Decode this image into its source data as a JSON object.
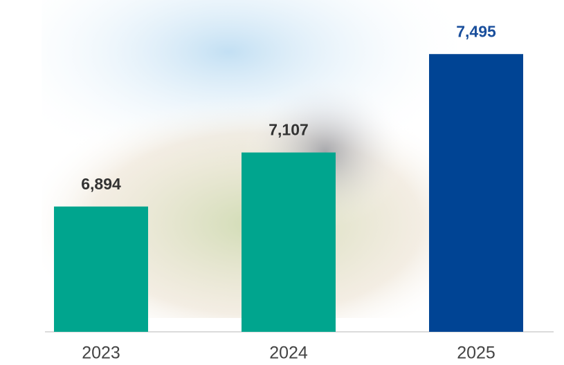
{
  "chart_data": {
    "type": "bar",
    "categories": [
      "2023",
      "2024",
      "2025"
    ],
    "values": [
      6894,
      7107,
      7495
    ],
    "value_labels": [
      "6,894",
      "7,107",
      "7,495"
    ],
    "colors": [
      "#00a58e",
      "#00a58e",
      "#004494"
    ],
    "value_label_colors": [
      "#333333",
      "#333333",
      "#1a4f9c"
    ],
    "ylim": [
      6400,
      7700
    ]
  }
}
